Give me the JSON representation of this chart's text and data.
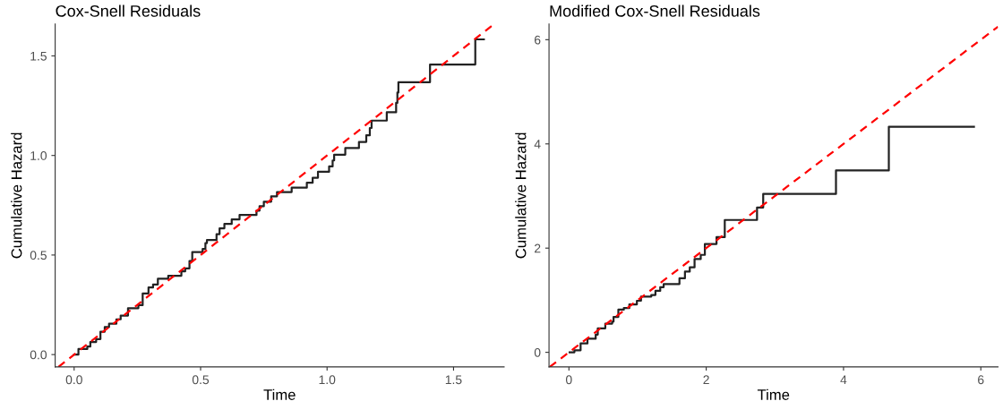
{
  "chart_data": [
    {
      "type": "step",
      "title": "Cox-Snell Residuals",
      "xlabel": "Time",
      "ylabel": "Cumulative Hazard",
      "grid": false,
      "legend": false,
      "xlim": [
        -0.075,
        1.7
      ],
      "ylim": [
        -0.062,
        1.66
      ],
      "xticks": [
        {
          "value": 0,
          "label": "0.0"
        },
        0.5,
        {
          "value": 1,
          "label": "1.0"
        },
        1.5
      ],
      "yticks": [
        {
          "value": 0,
          "label": "0.0"
        },
        0.5,
        {
          "value": 1,
          "label": "1.0"
        },
        1.5
      ],
      "series": [
        {
          "color": "#222222",
          "line_style": "solid",
          "x": [
            0,
            0.017,
            0.052,
            0.064,
            0.087,
            0.104,
            0.121,
            0.138,
            0.167,
            0.184,
            0.213,
            0.254,
            0.271,
            0.294,
            0.312,
            0.331,
            0.372,
            0.424,
            0.439,
            0.456,
            0.467,
            0.508,
            0.519,
            0.525,
            0.563,
            0.575,
            0.594,
            0.623,
            0.654,
            0.721,
            0.733,
            0.75,
            0.779,
            0.802,
            0.86,
            0.92,
            0.943,
            0.964,
            1.008,
            1.022,
            1.028,
            1.072,
            1.126,
            1.155,
            1.169,
            1.176,
            1.236,
            1.273,
            1.278,
            1.282,
            1.407,
            1.586,
            1.62
          ],
          "values": [
            0,
            0.028,
            0.04,
            0.063,
            0.078,
            0.115,
            0.138,
            0.155,
            0.177,
            0.196,
            0.233,
            0.248,
            0.307,
            0.337,
            0.352,
            0.381,
            0.396,
            0.418,
            0.433,
            0.47,
            0.515,
            0.53,
            0.56,
            0.575,
            0.605,
            0.634,
            0.656,
            0.679,
            0.701,
            0.723,
            0.745,
            0.768,
            0.795,
            0.816,
            0.838,
            0.863,
            0.888,
            0.918,
            0.945,
            0.975,
            1.004,
            1.037,
            1.068,
            1.101,
            1.138,
            1.175,
            1.217,
            1.264,
            1.316,
            1.368,
            1.457,
            1.583,
            1.583
          ]
        },
        {
          "type": "line",
          "color": "#ff0000",
          "line_style": "dashed",
          "x": [
            -0.062,
            1.66
          ],
          "values": [
            -0.062,
            1.66
          ]
        }
      ]
    },
    {
      "type": "step",
      "title": "Modified Cox-Snell Residuals",
      "xlabel": "Time",
      "ylabel": "Cumulative Hazard",
      "grid": false,
      "legend": false,
      "xlim": [
        -0.29,
        6.25
      ],
      "ylim": [
        -0.28,
        6.3
      ],
      "xticks": [
        0,
        2,
        4,
        6
      ],
      "yticks": [
        0,
        2,
        4,
        6
      ],
      "series": [
        {
          "color": "#222222",
          "line_style": "solid",
          "x": [
            0.01,
            0.08,
            0.17,
            0.27,
            0.39,
            0.42,
            0.53,
            0.63,
            0.65,
            0.72,
            0.8,
            0.88,
            0.99,
            1.05,
            1.2,
            1.26,
            1.33,
            1.38,
            1.61,
            1.69,
            1.76,
            1.83,
            1.92,
            1.98,
            2.15,
            2.27,
            2.74,
            2.83,
            3.89,
            4.66,
            5.9
          ],
          "values": [
            0,
            0.04,
            0.17,
            0.26,
            0.34,
            0.46,
            0.55,
            0.59,
            0.68,
            0.82,
            0.85,
            0.92,
            0.99,
            1.07,
            1.1,
            1.18,
            1.25,
            1.31,
            1.42,
            1.55,
            1.63,
            1.79,
            1.87,
            2.08,
            2.21,
            2.54,
            2.78,
            3.04,
            3.49,
            4.33,
            4.33
          ]
        },
        {
          "type": "line",
          "color": "#ff0000",
          "line_style": "dashed",
          "x": [
            -0.28,
            6.25
          ],
          "values": [
            -0.28,
            6.25
          ]
        }
      ]
    }
  ]
}
